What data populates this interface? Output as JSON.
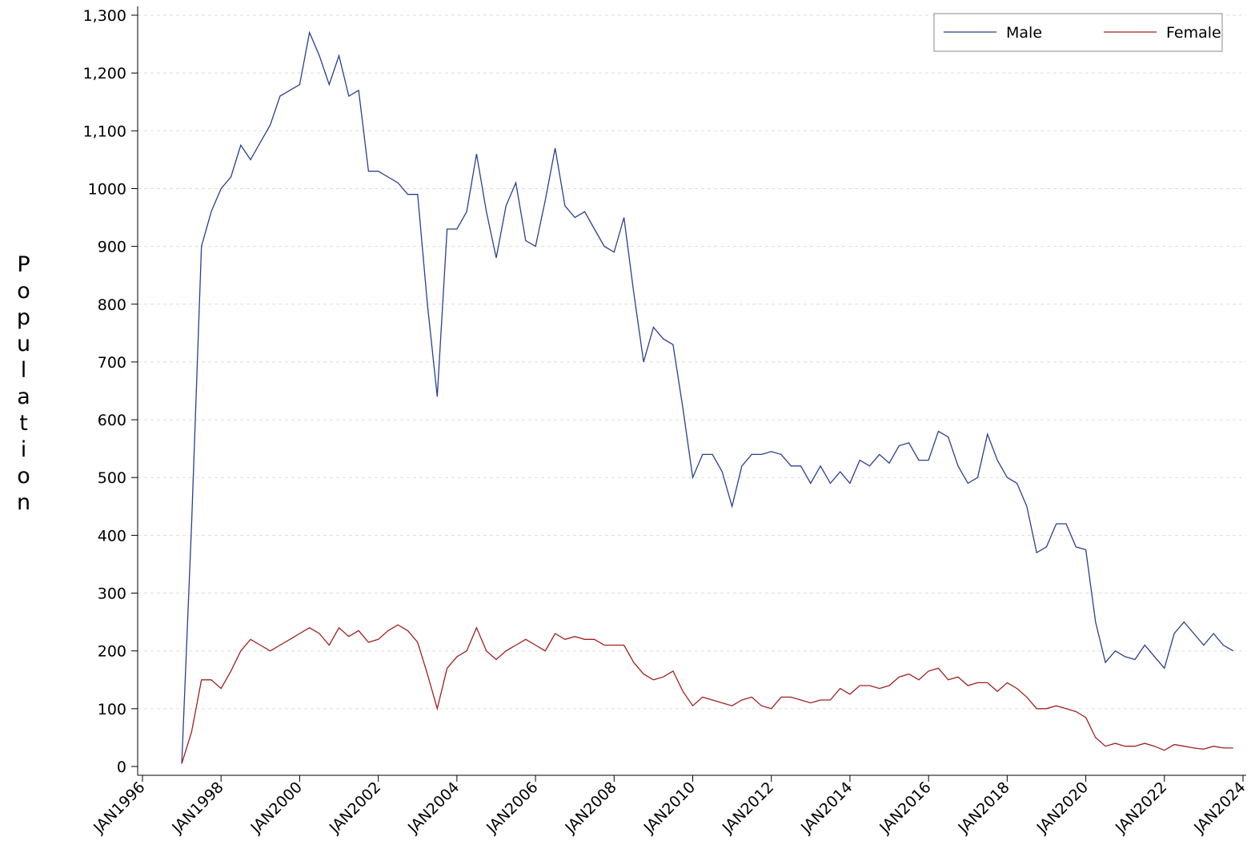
{
  "chart_data": {
    "type": "line",
    "y_label": "Population",
    "x": [
      1997,
      1997.25,
      1997.5,
      1997.75,
      1998,
      1998.25,
      1998.5,
      1998.75,
      1999,
      1999.25,
      1999.5,
      1999.75,
      2000,
      2000.25,
      2000.5,
      2000.75,
      2001,
      2001.25,
      2001.5,
      2001.75,
      2002,
      2002.25,
      2002.5,
      2002.75,
      2003,
      2003.25,
      2003.5,
      2003.75,
      2004,
      2004.25,
      2004.5,
      2004.75,
      2005,
      2005.25,
      2005.5,
      2005.75,
      2006,
      2006.25,
      2006.5,
      2006.75,
      2007,
      2007.25,
      2007.5,
      2007.75,
      2008,
      2008.25,
      2008.5,
      2008.75,
      2009,
      2009.25,
      2009.5,
      2009.75,
      2010,
      2010.25,
      2010.5,
      2010.75,
      2011,
      2011.25,
      2011.5,
      2011.75,
      2012,
      2012.25,
      2012.5,
      2012.75,
      2013,
      2013.25,
      2013.5,
      2013.75,
      2014,
      2014.25,
      2014.5,
      2014.75,
      2015,
      2015.25,
      2015.5,
      2015.75,
      2016,
      2016.25,
      2016.5,
      2016.75,
      2017,
      2017.25,
      2017.5,
      2017.75,
      2018,
      2018.25,
      2018.5,
      2018.75,
      2019,
      2019.25,
      2019.5,
      2019.75,
      2020,
      2020.25,
      2020.5,
      2020.75,
      2021,
      2021.25,
      2021.5,
      2021.75,
      2022,
      2022.25,
      2022.5,
      2022.75,
      2023,
      2023.25,
      2023.5,
      2023.75
    ],
    "series": [
      {
        "name": "Male",
        "color": "#2a3f8f",
        "values": [
          5,
          420,
          900,
          960,
          1000,
          1020,
          1075,
          1050,
          1080,
          1110,
          1160,
          1170,
          1180,
          1270,
          1230,
          1180,
          1230,
          1160,
          1170,
          1030,
          1030,
          1020,
          1010,
          990,
          990,
          800,
          640,
          930,
          930,
          960,
          1060,
          960,
          880,
          970,
          1010,
          910,
          900,
          980,
          1070,
          970,
          950,
          960,
          930,
          900,
          890,
          950,
          820,
          700,
          760,
          740,
          730,
          620,
          500,
          540,
          540,
          510,
          450,
          520,
          540,
          540,
          545,
          540,
          520,
          520,
          490,
          520,
          490,
          510,
          490,
          530,
          520,
          540,
          525,
          555,
          560,
          530,
          530,
          580,
          570,
          520,
          490,
          500,
          575,
          530,
          500,
          490,
          450,
          370,
          380,
          420,
          420,
          380,
          375,
          250,
          180,
          200,
          190,
          185,
          210,
          190,
          170,
          230,
          250,
          230,
          210,
          230,
          210,
          200
        ]
      },
      {
        "name": "Female",
        "color": "#a02020",
        "values": [
          5,
          60,
          150,
          150,
          135,
          165,
          200,
          220,
          210,
          200,
          210,
          220,
          230,
          240,
          230,
          210,
          240,
          225,
          235,
          215,
          220,
          235,
          245,
          235,
          215,
          160,
          100,
          170,
          190,
          200,
          240,
          200,
          185,
          200,
          210,
          220,
          210,
          200,
          230,
          220,
          225,
          220,
          220,
          210,
          210,
          210,
          180,
          160,
          150,
          155,
          165,
          130,
          105,
          120,
          115,
          110,
          105,
          115,
          120,
          105,
          100,
          120,
          120,
          115,
          110,
          115,
          115,
          135,
          125,
          140,
          140,
          135,
          140,
          155,
          160,
          150,
          165,
          170,
          150,
          155,
          140,
          145,
          145,
          130,
          145,
          135,
          120,
          100,
          100,
          105,
          100,
          95,
          85,
          50,
          35,
          40,
          35,
          35,
          40,
          35,
          28,
          38,
          35,
          32,
          30,
          35,
          32,
          32
        ]
      }
    ],
    "xlim": [
      1996,
      2024
    ],
    "xticks": [
      {
        "value": 1996,
        "label": "JAN1996"
      },
      {
        "value": 1998,
        "label": "JAN1998"
      },
      {
        "value": 2000,
        "label": "JAN2000"
      },
      {
        "value": 2002,
        "label": "JAN2002"
      },
      {
        "value": 2004,
        "label": "JAN2004"
      },
      {
        "value": 2006,
        "label": "JAN2006"
      },
      {
        "value": 2008,
        "label": "JAN2008"
      },
      {
        "value": 2010,
        "label": "JAN2010"
      },
      {
        "value": 2012,
        "label": "JAN2012"
      },
      {
        "value": 2014,
        "label": "JAN2014"
      },
      {
        "value": 2016,
        "label": "JAN2016"
      },
      {
        "value": 2018,
        "label": "JAN2018"
      },
      {
        "value": 2020,
        "label": "JAN2020"
      },
      {
        "value": 2022,
        "label": "JAN2022"
      },
      {
        "value": 2024,
        "label": "JAN2024"
      }
    ],
    "ylim": [
      0,
      1300
    ],
    "yticks": [
      0,
      100,
      200,
      300,
      400,
      500,
      600,
      700,
      800,
      900,
      1000,
      {
        "value": 1100,
        "label": "1,100"
      },
      {
        "value": 1200,
        "label": "1,200"
      },
      {
        "value": 1300,
        "label": "1,300"
      }
    ],
    "grid": true,
    "legend": "top-right"
  }
}
